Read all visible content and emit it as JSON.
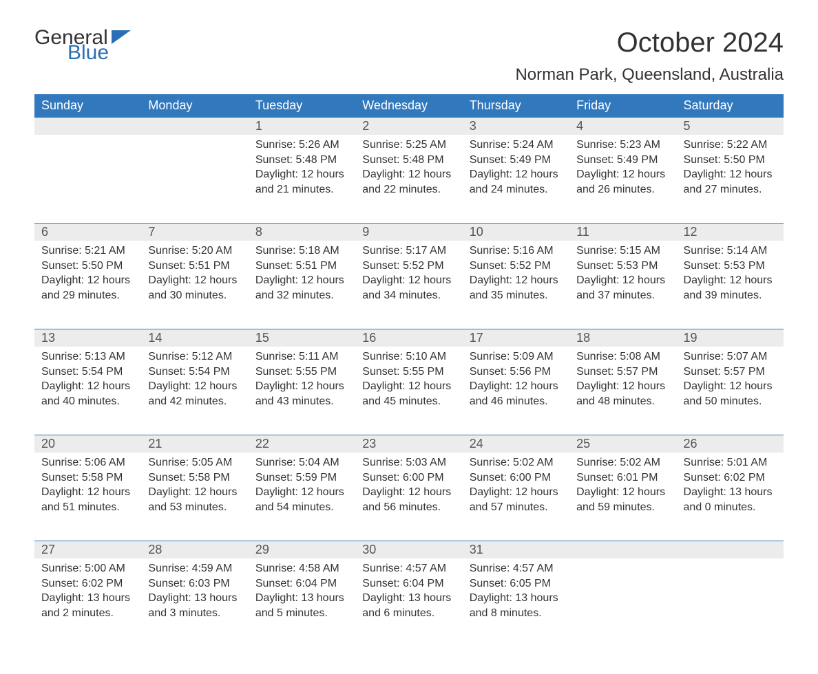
{
  "logo": {
    "word1": "General",
    "word2": "Blue"
  },
  "title": "October 2024",
  "location": "Norman Park, Queensland, Australia",
  "colors": {
    "header_bg": "#3178bd",
    "daynum_bg": "#ececec",
    "text": "#333333"
  },
  "day_headers": [
    "Sunday",
    "Monday",
    "Tuesday",
    "Wednesday",
    "Thursday",
    "Friday",
    "Saturday"
  ],
  "weeks": [
    [
      null,
      null,
      {
        "n": "1",
        "sr": "Sunrise: 5:26 AM",
        "ss": "Sunset: 5:48 PM",
        "d1": "Daylight: 12 hours",
        "d2": "and 21 minutes."
      },
      {
        "n": "2",
        "sr": "Sunrise: 5:25 AM",
        "ss": "Sunset: 5:48 PM",
        "d1": "Daylight: 12 hours",
        "d2": "and 22 minutes."
      },
      {
        "n": "3",
        "sr": "Sunrise: 5:24 AM",
        "ss": "Sunset: 5:49 PM",
        "d1": "Daylight: 12 hours",
        "d2": "and 24 minutes."
      },
      {
        "n": "4",
        "sr": "Sunrise: 5:23 AM",
        "ss": "Sunset: 5:49 PM",
        "d1": "Daylight: 12 hours",
        "d2": "and 26 minutes."
      },
      {
        "n": "5",
        "sr": "Sunrise: 5:22 AM",
        "ss": "Sunset: 5:50 PM",
        "d1": "Daylight: 12 hours",
        "d2": "and 27 minutes."
      }
    ],
    [
      {
        "n": "6",
        "sr": "Sunrise: 5:21 AM",
        "ss": "Sunset: 5:50 PM",
        "d1": "Daylight: 12 hours",
        "d2": "and 29 minutes."
      },
      {
        "n": "7",
        "sr": "Sunrise: 5:20 AM",
        "ss": "Sunset: 5:51 PM",
        "d1": "Daylight: 12 hours",
        "d2": "and 30 minutes."
      },
      {
        "n": "8",
        "sr": "Sunrise: 5:18 AM",
        "ss": "Sunset: 5:51 PM",
        "d1": "Daylight: 12 hours",
        "d2": "and 32 minutes."
      },
      {
        "n": "9",
        "sr": "Sunrise: 5:17 AM",
        "ss": "Sunset: 5:52 PM",
        "d1": "Daylight: 12 hours",
        "d2": "and 34 minutes."
      },
      {
        "n": "10",
        "sr": "Sunrise: 5:16 AM",
        "ss": "Sunset: 5:52 PM",
        "d1": "Daylight: 12 hours",
        "d2": "and 35 minutes."
      },
      {
        "n": "11",
        "sr": "Sunrise: 5:15 AM",
        "ss": "Sunset: 5:53 PM",
        "d1": "Daylight: 12 hours",
        "d2": "and 37 minutes."
      },
      {
        "n": "12",
        "sr": "Sunrise: 5:14 AM",
        "ss": "Sunset: 5:53 PM",
        "d1": "Daylight: 12 hours",
        "d2": "and 39 minutes."
      }
    ],
    [
      {
        "n": "13",
        "sr": "Sunrise: 5:13 AM",
        "ss": "Sunset: 5:54 PM",
        "d1": "Daylight: 12 hours",
        "d2": "and 40 minutes."
      },
      {
        "n": "14",
        "sr": "Sunrise: 5:12 AM",
        "ss": "Sunset: 5:54 PM",
        "d1": "Daylight: 12 hours",
        "d2": "and 42 minutes."
      },
      {
        "n": "15",
        "sr": "Sunrise: 5:11 AM",
        "ss": "Sunset: 5:55 PM",
        "d1": "Daylight: 12 hours",
        "d2": "and 43 minutes."
      },
      {
        "n": "16",
        "sr": "Sunrise: 5:10 AM",
        "ss": "Sunset: 5:55 PM",
        "d1": "Daylight: 12 hours",
        "d2": "and 45 minutes."
      },
      {
        "n": "17",
        "sr": "Sunrise: 5:09 AM",
        "ss": "Sunset: 5:56 PM",
        "d1": "Daylight: 12 hours",
        "d2": "and 46 minutes."
      },
      {
        "n": "18",
        "sr": "Sunrise: 5:08 AM",
        "ss": "Sunset: 5:57 PM",
        "d1": "Daylight: 12 hours",
        "d2": "and 48 minutes."
      },
      {
        "n": "19",
        "sr": "Sunrise: 5:07 AM",
        "ss": "Sunset: 5:57 PM",
        "d1": "Daylight: 12 hours",
        "d2": "and 50 minutes."
      }
    ],
    [
      {
        "n": "20",
        "sr": "Sunrise: 5:06 AM",
        "ss": "Sunset: 5:58 PM",
        "d1": "Daylight: 12 hours",
        "d2": "and 51 minutes."
      },
      {
        "n": "21",
        "sr": "Sunrise: 5:05 AM",
        "ss": "Sunset: 5:58 PM",
        "d1": "Daylight: 12 hours",
        "d2": "and 53 minutes."
      },
      {
        "n": "22",
        "sr": "Sunrise: 5:04 AM",
        "ss": "Sunset: 5:59 PM",
        "d1": "Daylight: 12 hours",
        "d2": "and 54 minutes."
      },
      {
        "n": "23",
        "sr": "Sunrise: 5:03 AM",
        "ss": "Sunset: 6:00 PM",
        "d1": "Daylight: 12 hours",
        "d2": "and 56 minutes."
      },
      {
        "n": "24",
        "sr": "Sunrise: 5:02 AM",
        "ss": "Sunset: 6:00 PM",
        "d1": "Daylight: 12 hours",
        "d2": "and 57 minutes."
      },
      {
        "n": "25",
        "sr": "Sunrise: 5:02 AM",
        "ss": "Sunset: 6:01 PM",
        "d1": "Daylight: 12 hours",
        "d2": "and 59 minutes."
      },
      {
        "n": "26",
        "sr": "Sunrise: 5:01 AM",
        "ss": "Sunset: 6:02 PM",
        "d1": "Daylight: 13 hours",
        "d2": "and 0 minutes."
      }
    ],
    [
      {
        "n": "27",
        "sr": "Sunrise: 5:00 AM",
        "ss": "Sunset: 6:02 PM",
        "d1": "Daylight: 13 hours",
        "d2": "and 2 minutes."
      },
      {
        "n": "28",
        "sr": "Sunrise: 4:59 AM",
        "ss": "Sunset: 6:03 PM",
        "d1": "Daylight: 13 hours",
        "d2": "and 3 minutes."
      },
      {
        "n": "29",
        "sr": "Sunrise: 4:58 AM",
        "ss": "Sunset: 6:04 PM",
        "d1": "Daylight: 13 hours",
        "d2": "and 5 minutes."
      },
      {
        "n": "30",
        "sr": "Sunrise: 4:57 AM",
        "ss": "Sunset: 6:04 PM",
        "d1": "Daylight: 13 hours",
        "d2": "and 6 minutes."
      },
      {
        "n": "31",
        "sr": "Sunrise: 4:57 AM",
        "ss": "Sunset: 6:05 PM",
        "d1": "Daylight: 13 hours",
        "d2": "and 8 minutes."
      },
      null,
      null
    ]
  ]
}
